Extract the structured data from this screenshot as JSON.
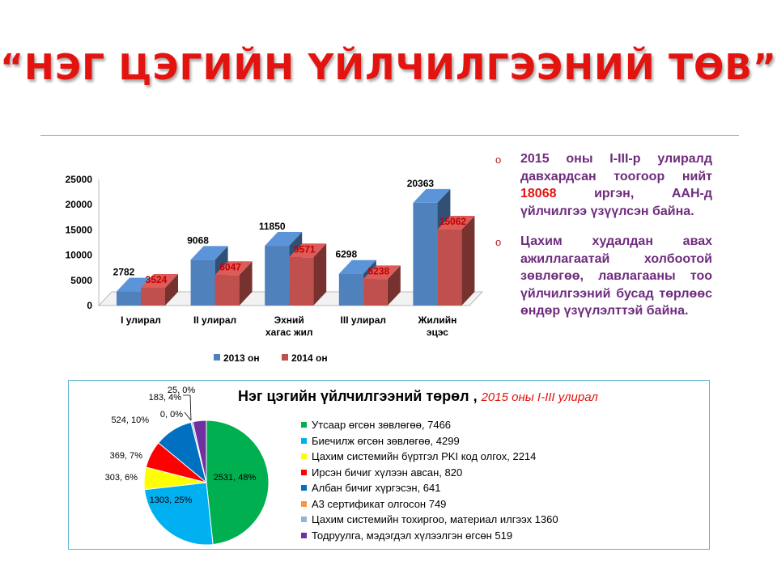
{
  "title": "“НЭГ ЦЭГИЙН ҮЙЛЧИЛГЭЭНИЙ ТӨВ”",
  "chart_data": [
    {
      "type": "bar",
      "categories": [
        "I улирал",
        "II улирал",
        "Эхний хагас жил",
        "III улирал",
        "Жилийн эцэс"
      ],
      "series": [
        {
          "name": "2013  он",
          "values": [
            2782,
            9068,
            11850,
            6298,
            20363
          ],
          "color": "#4f81bd"
        },
        {
          "name": "2014  он",
          "values": [
            3524,
            6047,
            9571,
            5238,
            15062
          ],
          "color": "#c0504d"
        }
      ],
      "yticks": [
        "0",
        "5000",
        "10000",
        "15000",
        "20000",
        "25000"
      ],
      "ylim": [
        0,
        25000
      ],
      "legend": "bottom"
    },
    {
      "type": "pie",
      "title": "Нэг цэгийн үйлчилгээний төрөл ,",
      "subtitle": "2015 оны I-III улирал",
      "slices": [
        {
          "label": "Утсаар өгсөн зөвлөгөө, 7466",
          "data_label": "2531, 48%",
          "value": 2531,
          "percent": 48,
          "color": "#00b050"
        },
        {
          "label": "Биечилж  өгсөн зөвлөгөө, 4299",
          "data_label": "1303, 25%",
          "value": 1303,
          "percent": 25,
          "color": "#00b0f0"
        },
        {
          "label": "Цахим системийн  бүртгэл PKI код олгох, 2214",
          "data_label": "303, 6%",
          "value": 303,
          "percent": 6,
          "color": "#ffff00"
        },
        {
          "label": "Ирсэн бичиг хүлээн  авсан, 820",
          "data_label": "369, 7%",
          "value": 369,
          "percent": 7,
          "color": "#ff0000"
        },
        {
          "label": "Албан бичиг хүргэсэн, 641",
          "data_label": "524, 10%",
          "value": 524,
          "percent": 10,
          "color": "#0070c0"
        },
        {
          "label": "А3 сертификат олгосон 749",
          "data_label": "0, 0%",
          "value": 0,
          "percent": 0,
          "color": "#f79646"
        },
        {
          "label": "Цахим системийн  тохиргоо, материал илгээх 1360",
          "data_label": "25, 0%",
          "value": 25,
          "percent": 0,
          "color": "#95b3d7"
        },
        {
          "label": "Тодруулга,  мэдэгдэл хүлээлгэн  өгсөн 519",
          "data_label": "183, 4%",
          "value": 183,
          "percent": 4,
          "color": "#7030a0"
        }
      ],
      "legend": "right"
    }
  ],
  "bullets": [
    {
      "pre": "2015  оны  I-III-р  улиралд давхардсан тоогоор нийт ",
      "highlight": "18068",
      "post": "  иргэн,  ААН-д үйлчилгээ  үзүүлсэн байна."
    },
    {
      "pre": "Цахим  худалдан  авах ажиллагаатай холбоотой зөвлөгөө,  лавлагааны тоо үйлчилгээний бусад төрлөөс  өндөр үзүүлэлттэй байна.",
      "highlight": "",
      "post": ""
    }
  ],
  "bullet_marker": "o"
}
